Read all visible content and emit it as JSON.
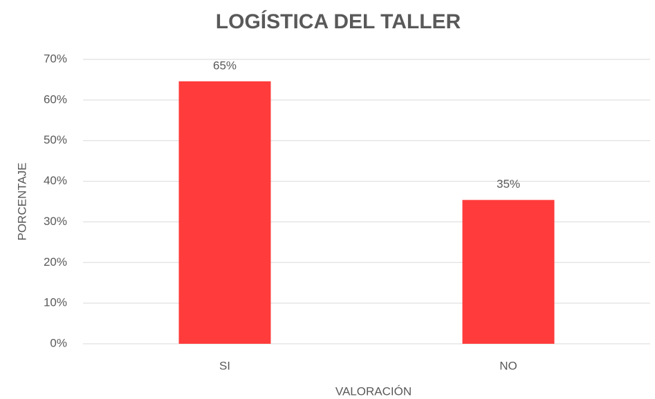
{
  "chart_data": {
    "type": "bar",
    "title": "LOGÍSTICA DEL TALLER",
    "x_label": "VALORACIÓN",
    "y_label": "PORCENTAJE",
    "categories": [
      "SI",
      "NO"
    ],
    "values": [
      64.6,
      35.4
    ],
    "value_labels": [
      "65%",
      "35%"
    ],
    "color": "#ff3b3b",
    "ylim": [
      0,
      70
    ],
    "yticks": [
      {
        "value": 0,
        "label": "0%"
      },
      {
        "value": 10,
        "label": "10%"
      },
      {
        "value": 20,
        "label": "20%"
      },
      {
        "value": 30,
        "label": "30%"
      },
      {
        "value": 40,
        "label": "40%"
      },
      {
        "value": 50,
        "label": "50%"
      },
      {
        "value": 60,
        "label": "60%"
      },
      {
        "value": 70,
        "label": "70%"
      }
    ],
    "grid": true
  }
}
